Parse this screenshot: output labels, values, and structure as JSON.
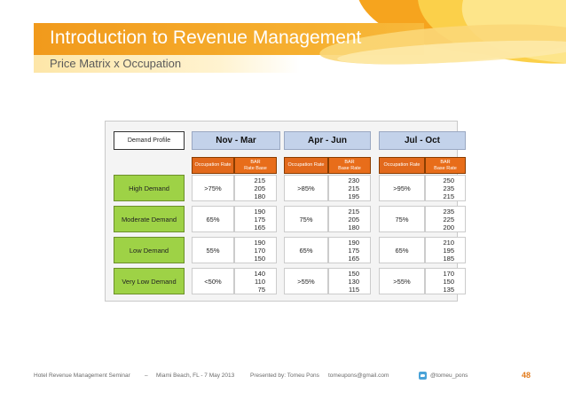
{
  "slide": {
    "title": "Introduction to Revenue Management",
    "subtitle": "Price Matrix x Occupation"
  },
  "matrix": {
    "demand_profile_label": "Demand Profile",
    "seasons": [
      "Nov - Mar",
      "Apr - Jun",
      "Jul - Oct"
    ],
    "occupation_header": "Occupation Rate",
    "bar_header_line1": "BAR",
    "bar_header_line2": "Rate Base",
    "bar_header_line2_alt": "Base Rate",
    "rows": [
      {
        "demand": "High Demand",
        "cells": [
          {
            "occ": ">75%",
            "rates": [
              "215",
              "205",
              "180"
            ]
          },
          {
            "occ": ">85%",
            "rates": [
              "230",
              "215",
              "195"
            ]
          },
          {
            "occ": ">95%",
            "rates": [
              "250",
              "235",
              "215"
            ]
          }
        ]
      },
      {
        "demand": "Moderate Demand",
        "cells": [
          {
            "occ": "65%",
            "rates": [
              "190",
              "175",
              "165"
            ]
          },
          {
            "occ": "75%",
            "rates": [
              "215",
              "205",
              "180"
            ]
          },
          {
            "occ": "75%",
            "rates": [
              "235",
              "225",
              "200"
            ]
          }
        ]
      },
      {
        "demand": "Low Demand",
        "cells": [
          {
            "occ": "55%",
            "rates": [
              "190",
              "170",
              "150"
            ]
          },
          {
            "occ": "65%",
            "rates": [
              "190",
              "175",
              "165"
            ]
          },
          {
            "occ": "65%",
            "rates": [
              "210",
              "195",
              "185"
            ]
          }
        ]
      },
      {
        "demand": "Very Low Demand",
        "cells": [
          {
            "occ": "<50%",
            "rates": [
              "140",
              "110",
              "75"
            ]
          },
          {
            "occ": ">55%",
            "rates": [
              "150",
              "130",
              "115"
            ]
          },
          {
            "occ": ">55%",
            "rates": [
              "170",
              "150",
              "135"
            ]
          }
        ]
      }
    ]
  },
  "footer": {
    "seminar": "Hotel Revenue Management Seminar",
    "separator": "–",
    "location": "Miami Beach, FL  -  7 May 2013",
    "presented_by": "Presented by:  Tomeu Pons",
    "email": "tomeupons@gmail.com",
    "twitter": "@tomeu_pons",
    "page_number": "48"
  },
  "colors": {
    "accent_orange": "#f19a1c",
    "header_orange": "#e2691c",
    "season_blue": "#c3d2ea",
    "demand_green": "#9ed246"
  }
}
